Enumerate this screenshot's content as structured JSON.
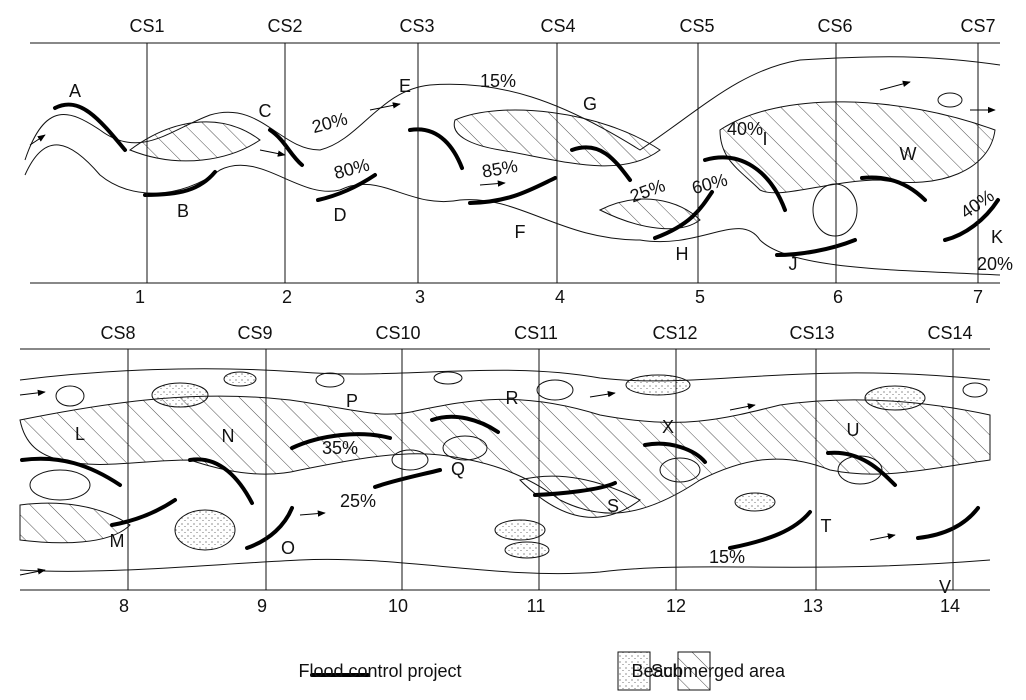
{
  "sections": [
    "CS1",
    "CS2",
    "CS3",
    "CS4",
    "CS5",
    "CS6",
    "CS7",
    "CS8",
    "CS9",
    "CS10",
    "CS11",
    "CS12",
    "CS13",
    "CS14"
  ],
  "section_numbers": [
    "1",
    "2",
    "3",
    "4",
    "5",
    "6",
    "7",
    "8",
    "9",
    "10",
    "11",
    "12",
    "13",
    "14"
  ],
  "sites": [
    "A",
    "B",
    "C",
    "D",
    "E",
    "F",
    "G",
    "H",
    "I",
    "J",
    "W",
    "K",
    "L",
    "M",
    "N",
    "O",
    "P",
    "Q",
    "R",
    "S",
    "X",
    "T",
    "U",
    "V"
  ],
  "percentages": [
    "15%",
    "20%",
    "80%",
    "85%",
    "40%",
    "25%",
    "60%",
    "40%",
    "20%",
    "35%",
    "25%",
    "15%"
  ],
  "legend": [
    "Flood control project",
    "Beach",
    "Submerged area"
  ]
}
